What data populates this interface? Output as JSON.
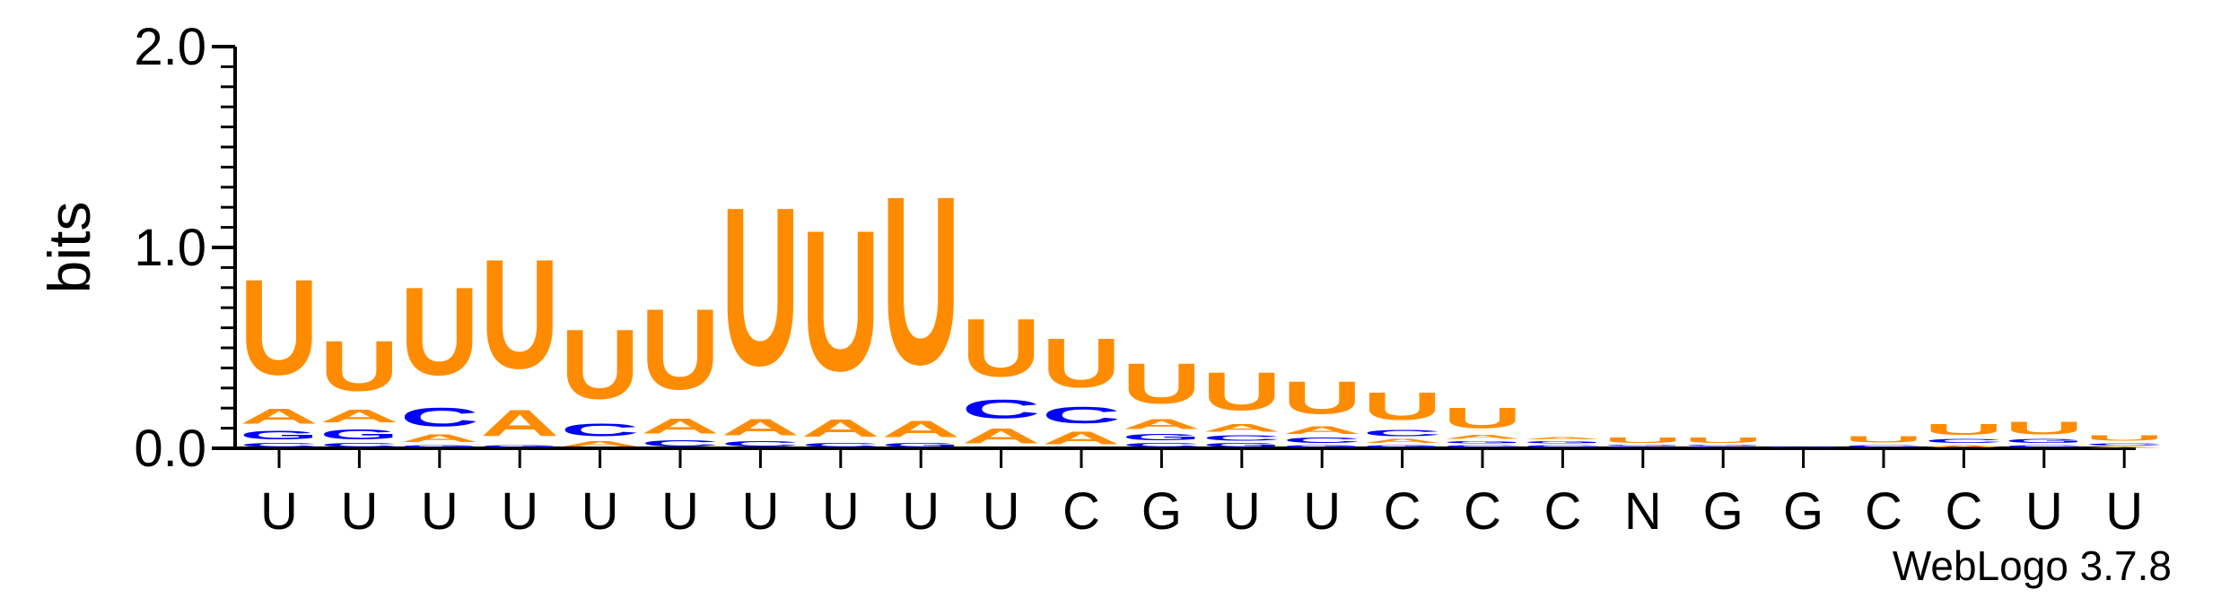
{
  "chart_data": {
    "type": "sequence-logo",
    "ylabel": "bits",
    "ylim": [
      0,
      2.0
    ],
    "yticks": [
      {
        "value": 0,
        "label": "0.0"
      },
      {
        "value": 1,
        "label": "1.0"
      },
      {
        "value": 2,
        "label": "2.0"
      }
    ],
    "colors": {
      "U": "#ff8c00",
      "A": "#ff8c00",
      "C": "#0000ff",
      "G": "#0000ff"
    },
    "consensus": [
      "U",
      "U",
      "U",
      "U",
      "U",
      "U",
      "U",
      "U",
      "U",
      "U",
      "C",
      "G",
      "U",
      "U",
      "C",
      "C",
      "C",
      "N",
      "G",
      "G",
      "C",
      "C",
      "U",
      "U"
    ],
    "positions": [
      {
        "stack": [
          {
            "l": "C",
            "h": 0.03
          },
          {
            "l": "G",
            "h": 0.07
          },
          {
            "l": "A",
            "h": 0.12
          },
          {
            "l": "U",
            "h": 0.76
          }
        ]
      },
      {
        "stack": [
          {
            "l": "C",
            "h": 0.03
          },
          {
            "l": "G",
            "h": 0.08
          },
          {
            "l": "A",
            "h": 0.1
          },
          {
            "l": "U",
            "h": 0.4
          }
        ]
      },
      {
        "stack": [
          {
            "l": "G",
            "h": 0.02
          },
          {
            "l": "A",
            "h": 0.06
          },
          {
            "l": "C",
            "h": 0.15
          },
          {
            "l": "U",
            "h": 0.7
          }
        ]
      },
      {
        "stack": [
          {
            "l": "G",
            "h": 0.02
          },
          {
            "l": "A",
            "h": 0.21
          },
          {
            "l": "U",
            "h": 0.87
          }
        ]
      },
      {
        "stack": [
          {
            "l": "A",
            "h": 0.04
          },
          {
            "l": "C",
            "h": 0.1
          },
          {
            "l": "U",
            "h": 0.55
          }
        ]
      },
      {
        "stack": [
          {
            "l": "C",
            "h": 0.05
          },
          {
            "l": "A",
            "h": 0.12
          },
          {
            "l": "U",
            "h": 0.64
          }
        ]
      },
      {
        "stack": [
          {
            "l": "C",
            "h": 0.04
          },
          {
            "l": "A",
            "h": 0.13
          },
          {
            "l": "U",
            "h": 1.26
          }
        ]
      },
      {
        "stack": [
          {
            "l": "C",
            "h": 0.03
          },
          {
            "l": "A",
            "h": 0.14
          },
          {
            "l": "U",
            "h": 1.12
          }
        ]
      },
      {
        "stack": [
          {
            "l": "G",
            "h": 0.03
          },
          {
            "l": "A",
            "h": 0.13
          },
          {
            "l": "U",
            "h": 1.34
          }
        ]
      },
      {
        "stack": [
          {
            "l": "A",
            "h": 0.12
          },
          {
            "l": "C",
            "h": 0.15
          },
          {
            "l": "U",
            "h": 0.46
          }
        ]
      },
      {
        "stack": [
          {
            "l": "A",
            "h": 0.1
          },
          {
            "l": "C",
            "h": 0.13
          },
          {
            "l": "U",
            "h": 0.39
          }
        ]
      },
      {
        "stack": [
          {
            "l": "C",
            "h": 0.03
          },
          {
            "l": "G",
            "h": 0.05
          },
          {
            "l": "A",
            "h": 0.08
          },
          {
            "l": "U",
            "h": 0.32
          }
        ]
      },
      {
        "stack": [
          {
            "l": "G",
            "h": 0.03
          },
          {
            "l": "C",
            "h": 0.04
          },
          {
            "l": "A",
            "h": 0.06
          },
          {
            "l": "U",
            "h": 0.3
          }
        ]
      },
      {
        "stack": [
          {
            "l": "G",
            "h": 0.02
          },
          {
            "l": "C",
            "h": 0.04
          },
          {
            "l": "A",
            "h": 0.06
          },
          {
            "l": "U",
            "h": 0.26
          }
        ]
      },
      {
        "stack": [
          {
            "l": "G",
            "h": 0.02
          },
          {
            "l": "A",
            "h": 0.03
          },
          {
            "l": "C",
            "h": 0.05
          },
          {
            "l": "U",
            "h": 0.22
          }
        ]
      },
      {
        "stack": [
          {
            "l": "C",
            "h": 0.02
          },
          {
            "l": "G",
            "h": 0.02
          },
          {
            "l": "A",
            "h": 0.03
          },
          {
            "l": "U",
            "h": 0.16
          }
        ]
      },
      {
        "stack": [
          {
            "l": "C",
            "h": 0.02
          },
          {
            "l": "G",
            "h": 0.02
          },
          {
            "l": "A",
            "h": 0.02
          }
        ]
      },
      {
        "stack": [
          {
            "l": "C",
            "h": 0.01
          },
          {
            "l": "G",
            "h": 0.01
          },
          {
            "l": "U",
            "h": 0.04
          }
        ]
      },
      {
        "stack": [
          {
            "l": "C",
            "h": 0.01
          },
          {
            "l": "G",
            "h": 0.01
          },
          {
            "l": "U",
            "h": 0.04
          }
        ]
      },
      {
        "stack": [
          {
            "l": "G",
            "h": 0.01
          }
        ]
      },
      {
        "stack": [
          {
            "l": "C",
            "h": 0.02
          },
          {
            "l": "U",
            "h": 0.05
          }
        ]
      },
      {
        "stack": [
          {
            "l": "A",
            "h": 0.02
          },
          {
            "l": "C",
            "h": 0.03
          },
          {
            "l": "U",
            "h": 0.09
          }
        ]
      },
      {
        "stack": [
          {
            "l": "C",
            "h": 0.02
          },
          {
            "l": "G",
            "h": 0.03
          },
          {
            "l": "U",
            "h": 0.1
          }
        ]
      },
      {
        "stack": [
          {
            "l": "A",
            "h": 0.01
          },
          {
            "l": "C",
            "h": 0.02
          },
          {
            "l": "U",
            "h": 0.04
          }
        ]
      }
    ]
  },
  "footer": {
    "credit": "WebLogo 3.7.8"
  }
}
